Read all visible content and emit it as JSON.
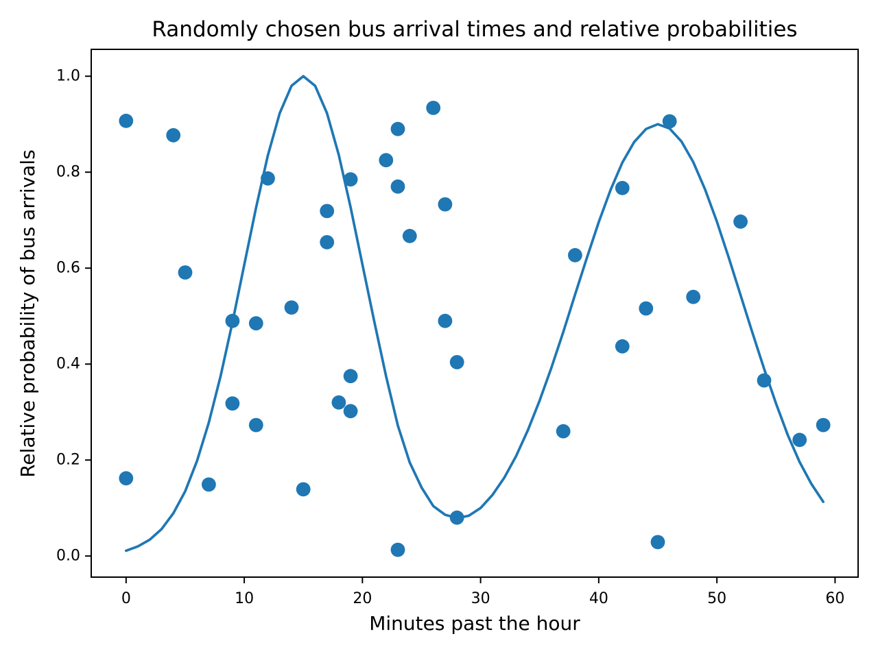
{
  "figure": {
    "background": "#ffffff",
    "accent": "#1f77b4"
  },
  "chart_data": {
    "type": "scatter",
    "title": "Randomly chosen bus arrival times and relative probabilities",
    "xlabel": "Minutes past the hour",
    "ylabel": "Relative probability of bus arrivals",
    "xlim": [
      -2.95,
      61.95
    ],
    "ylim": [
      -0.044,
      1.056
    ],
    "grid": false,
    "legend": "none",
    "xticks": [
      0,
      10,
      20,
      30,
      40,
      50,
      60
    ],
    "xtick_labels": [
      "0",
      "10",
      "20",
      "30",
      "40",
      "50",
      "60"
    ],
    "yticks": [
      0.0,
      0.2,
      0.4,
      0.6,
      0.8,
      1.0
    ],
    "ytick_labels": [
      "0.0",
      "0.2",
      "0.4",
      "0.6",
      "0.8",
      "1.0"
    ],
    "series": [
      {
        "name": "probability-curve",
        "type": "line",
        "color": "#1f77b4",
        "x": [
          0,
          1,
          2,
          3,
          4,
          5,
          6,
          7,
          8,
          9,
          10,
          11,
          12,
          13,
          14,
          15,
          16,
          17,
          18,
          19,
          20,
          21,
          22,
          23,
          24,
          25,
          26,
          27,
          28,
          29,
          30,
          31,
          32,
          33,
          34,
          35,
          36,
          37,
          38,
          39,
          40,
          41,
          42,
          43,
          44,
          45,
          46,
          47,
          48,
          49,
          50,
          51,
          52,
          53,
          54,
          55,
          56,
          57,
          58,
          59
        ],
        "y": [
          0.011,
          0.02,
          0.034,
          0.056,
          0.089,
          0.135,
          0.198,
          0.278,
          0.375,
          0.487,
          0.607,
          0.726,
          0.835,
          0.923,
          0.98,
          1.0,
          0.98,
          0.923,
          0.836,
          0.727,
          0.608,
          0.489,
          0.375,
          0.272,
          0.195,
          0.143,
          0.104,
          0.086,
          0.079,
          0.084,
          0.1,
          0.127,
          0.163,
          0.208,
          0.262,
          0.324,
          0.393,
          0.467,
          0.545,
          0.622,
          0.696,
          0.763,
          0.82,
          0.863,
          0.89,
          0.9,
          0.891,
          0.864,
          0.821,
          0.764,
          0.697,
          0.622,
          0.544,
          0.466,
          0.39,
          0.318,
          0.252,
          0.196,
          0.15,
          0.113
        ]
      },
      {
        "name": "bus-arrival-samples",
        "type": "scatter",
        "color": "#1f77b4",
        "points": [
          [
            0,
            0.907
          ],
          [
            0,
            0.162
          ],
          [
            4,
            0.877
          ],
          [
            5,
            0.591
          ],
          [
            7,
            0.149
          ],
          [
            9,
            0.49
          ],
          [
            9,
            0.318
          ],
          [
            11,
            0.485
          ],
          [
            11,
            0.273
          ],
          [
            12,
            0.787
          ],
          [
            14,
            0.518
          ],
          [
            15,
            0.139
          ],
          [
            17,
            0.719
          ],
          [
            17,
            0.654
          ],
          [
            18,
            0.32
          ],
          [
            19,
            0.785
          ],
          [
            19,
            0.375
          ],
          [
            19,
            0.302
          ],
          [
            22,
            0.825
          ],
          [
            23,
            0.89
          ],
          [
            23,
            0.77
          ],
          [
            23,
            0.013
          ],
          [
            24,
            0.667
          ],
          [
            26,
            0.934
          ],
          [
            27,
            0.733
          ],
          [
            27,
            0.49
          ],
          [
            28,
            0.404
          ],
          [
            28,
            0.08
          ],
          [
            37,
            0.26
          ],
          [
            38,
            0.627
          ],
          [
            42,
            0.767
          ],
          [
            42,
            0.437
          ],
          [
            44,
            0.516
          ],
          [
            45,
            0.029
          ],
          [
            46,
            0.906
          ],
          [
            48,
            0.54
          ],
          [
            52,
            0.697
          ],
          [
            54,
            0.366
          ],
          [
            57,
            0.242
          ],
          [
            59,
            0.273
          ]
        ]
      }
    ]
  }
}
